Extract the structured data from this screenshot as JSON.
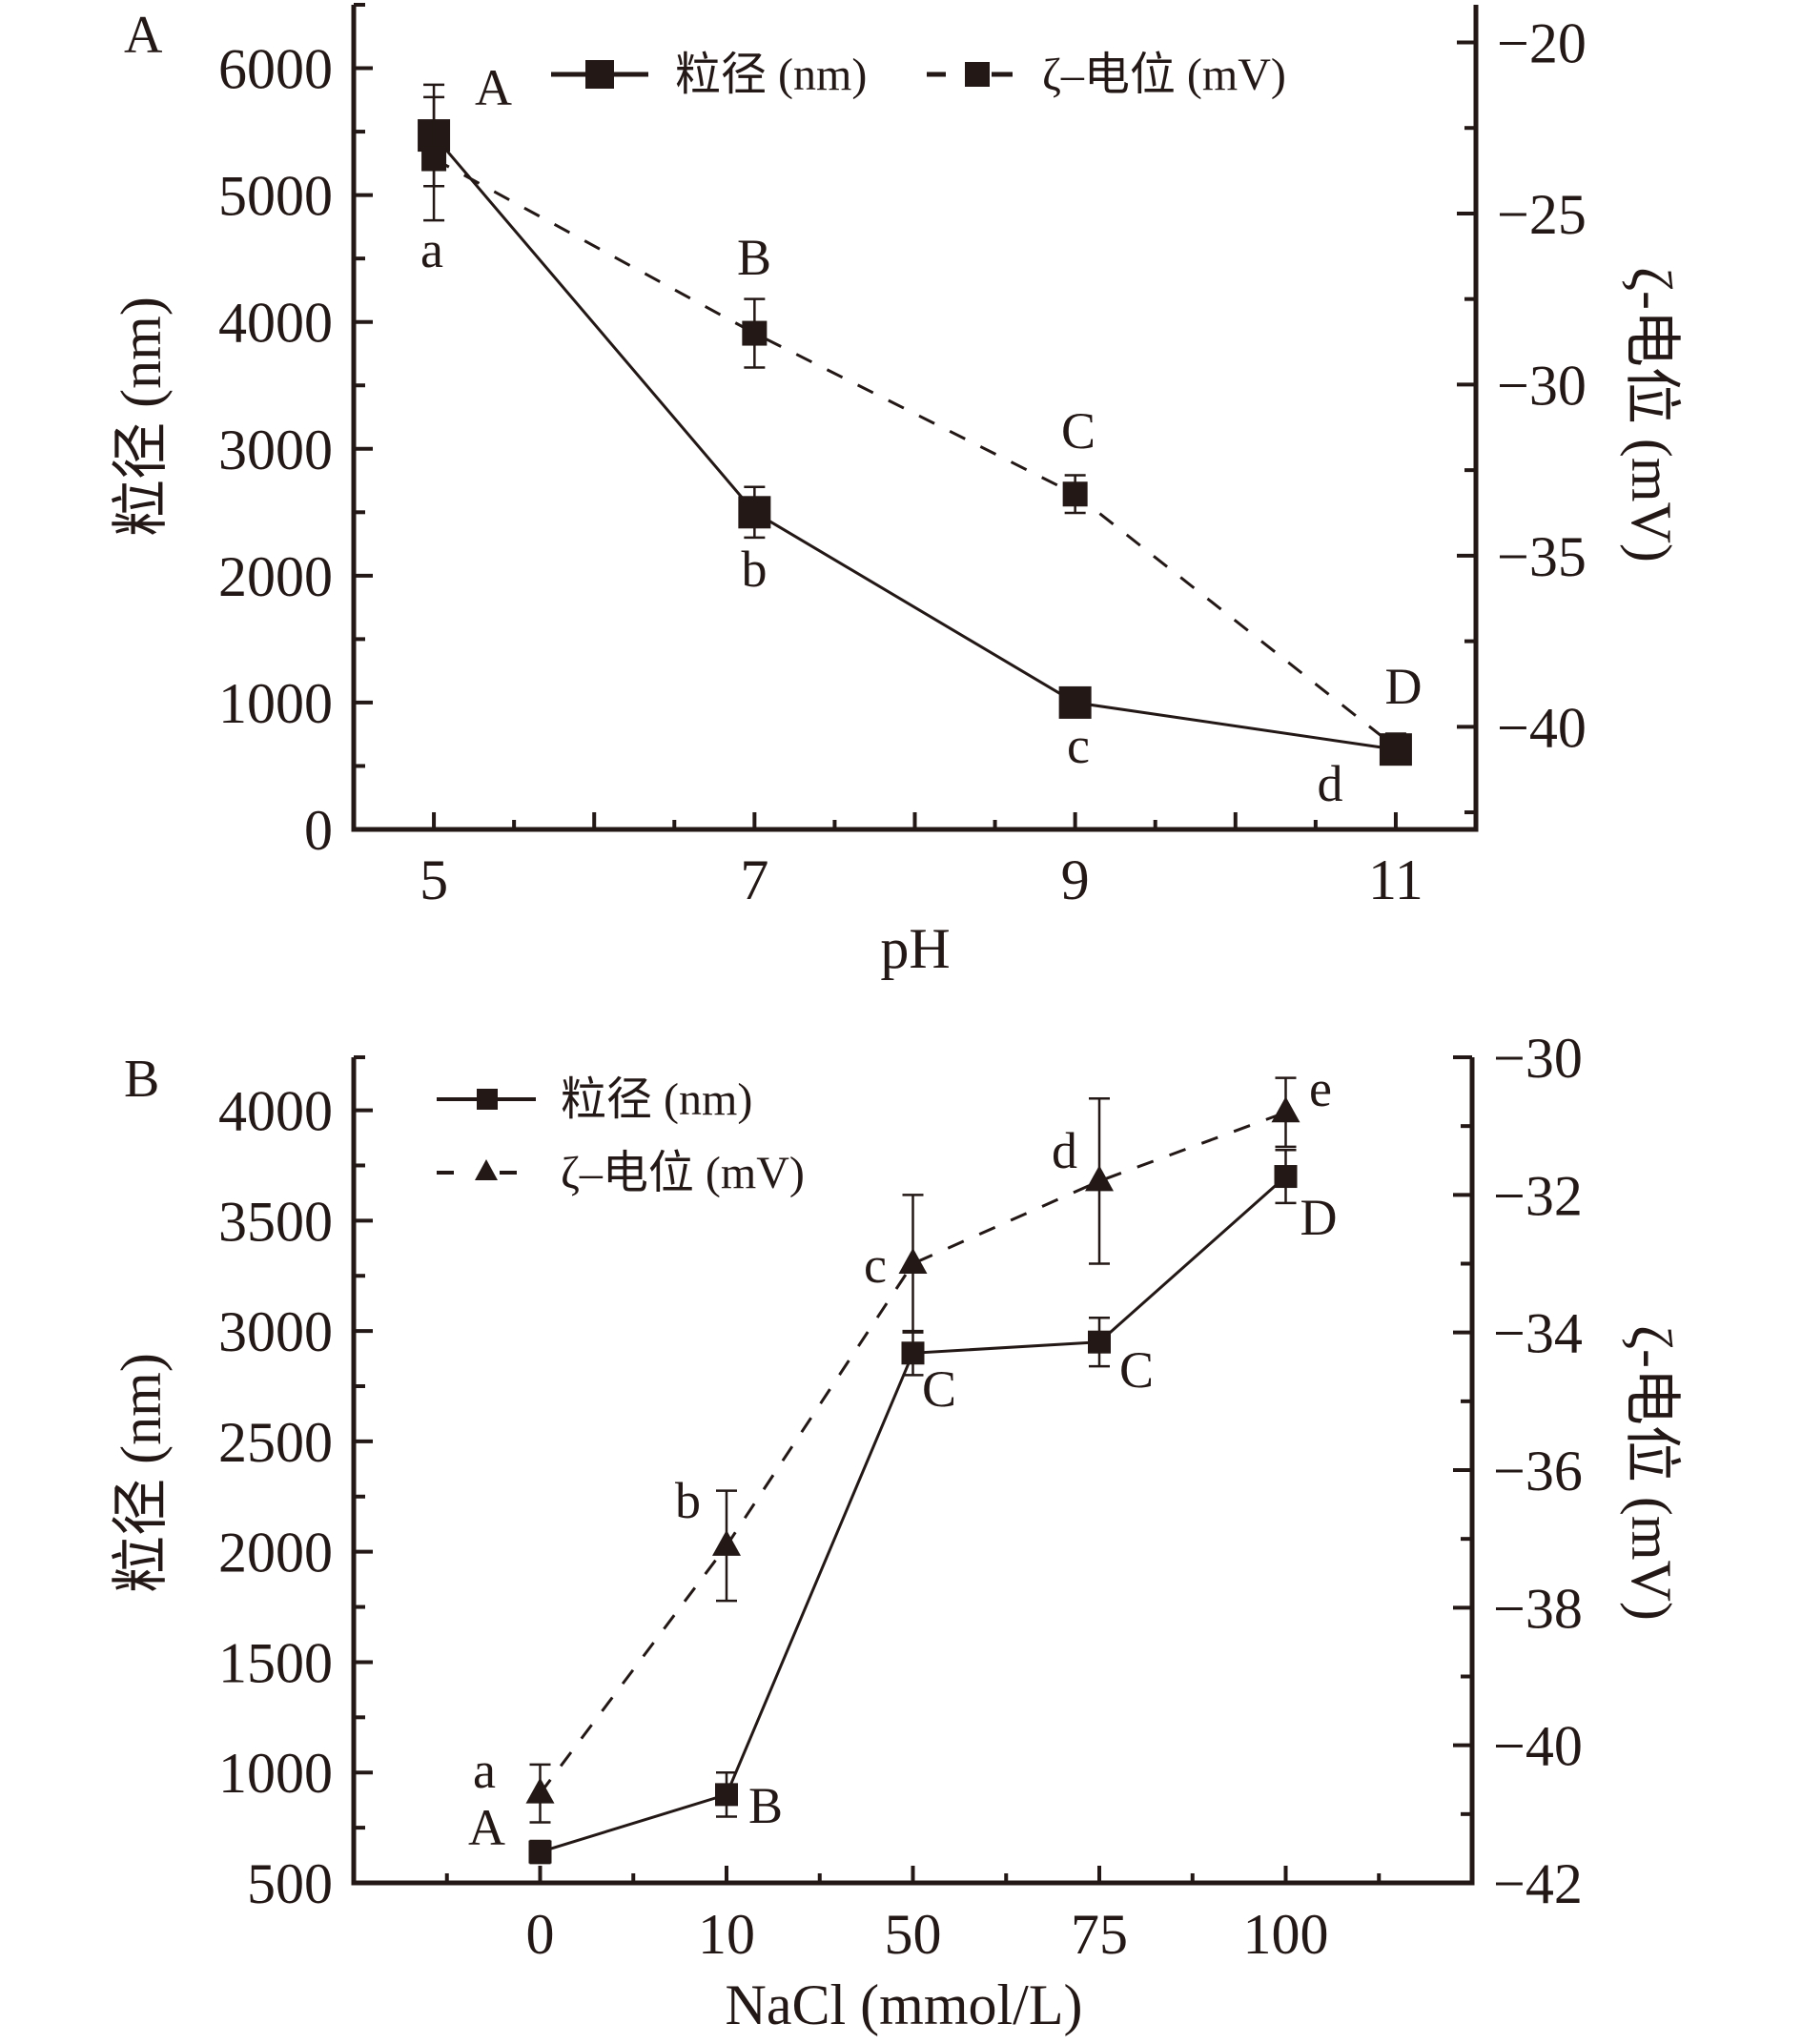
{
  "colors": {
    "ink": "#231815",
    "background": "#ffffff"
  },
  "chart_data": [
    {
      "panel": "A",
      "type": "line",
      "title": "",
      "xlabel": "pH",
      "ylabel": "粒径 (nm)",
      "y2label": "ζ-电位 (mV)",
      "x_ticks": [
        "5",
        "7",
        "9",
        "11"
      ],
      "x": [
        5,
        7,
        9,
        11
      ],
      "xlim": [
        4.5,
        11.5
      ],
      "ylim": [
        0,
        6500
      ],
      "y_ticks": [
        "0",
        "1000",
        "2000",
        "3000",
        "4000",
        "5000",
        "6000"
      ],
      "y2lim": [
        -43,
        -18.9
      ],
      "y2_ticks": [
        "−40",
        "−35",
        "−30",
        "−25",
        "−20"
      ],
      "y2_tick_values": [
        -40,
        -35,
        -30,
        -25,
        -20
      ],
      "legend": {
        "placement": "top",
        "entries": [
          "粒径 (nm)",
          "ζ–电位 (mV)"
        ]
      },
      "series": [
        {
          "name": "粒径 (nm)",
          "axis": "left",
          "marker": "square",
          "line": "solid",
          "values": [
            5470,
            2500,
            1000,
            630
          ],
          "errors": [
            400,
            200,
            90,
            100
          ],
          "labels": [
            "A",
            "b",
            "c",
            "d"
          ]
        },
        {
          "name": "ζ–电位 (mV)",
          "axis": "right",
          "marker": "square",
          "line": "dashed",
          "values": [
            -23.4,
            -28.5,
            -33.2,
            -40.6
          ],
          "errors": [
            1.8,
            1.0,
            0.55,
            0.4
          ],
          "labels": [
            "a",
            "B",
            "C",
            "D"
          ]
        }
      ]
    },
    {
      "panel": "B",
      "type": "line",
      "title": "",
      "xlabel": "NaCl (mmol/L)",
      "ylabel": "粒径 (nm)",
      "y2label": "ζ-电位 (mV)",
      "categories": [
        "0",
        "10",
        "50",
        "75",
        "100"
      ],
      "ylim": [
        500,
        4240
      ],
      "y_ticks": [
        "500",
        "1000",
        "1500",
        "2000",
        "2500",
        "3000",
        "3500",
        "4000"
      ],
      "y2lim": [
        -42,
        -30
      ],
      "y2_ticks": [
        "−42",
        "−40",
        "−38",
        "−36",
        "−34",
        "−32",
        "−30"
      ],
      "y2_tick_values": [
        -42,
        -40,
        -38,
        -36,
        -34,
        -32,
        -30
      ],
      "legend": {
        "placement": "top-left",
        "entries": [
          "粒径 (nm)",
          "ζ–电位 (mV)"
        ]
      },
      "series": [
        {
          "name": "粒径 (nm)",
          "axis": "left",
          "marker": "square",
          "line": "solid",
          "values": [
            640,
            900,
            2900,
            2950,
            3700
          ],
          "errors": [
            50,
            100,
            100,
            110,
            120
          ],
          "labels": [
            "A",
            "B",
            "C",
            "C",
            "D"
          ]
        },
        {
          "name": "ζ–电位 (mV)",
          "axis": "right",
          "marker": "triangle",
          "line": "dashed",
          "values": [
            -40.7,
            -37.1,
            -33.0,
            -31.8,
            -30.8
          ],
          "errors": [
            0.42,
            0.8,
            1.0,
            1.2,
            0.5
          ],
          "labels": [
            "a",
            "b",
            "c",
            "d",
            "e"
          ]
        }
      ]
    }
  ]
}
